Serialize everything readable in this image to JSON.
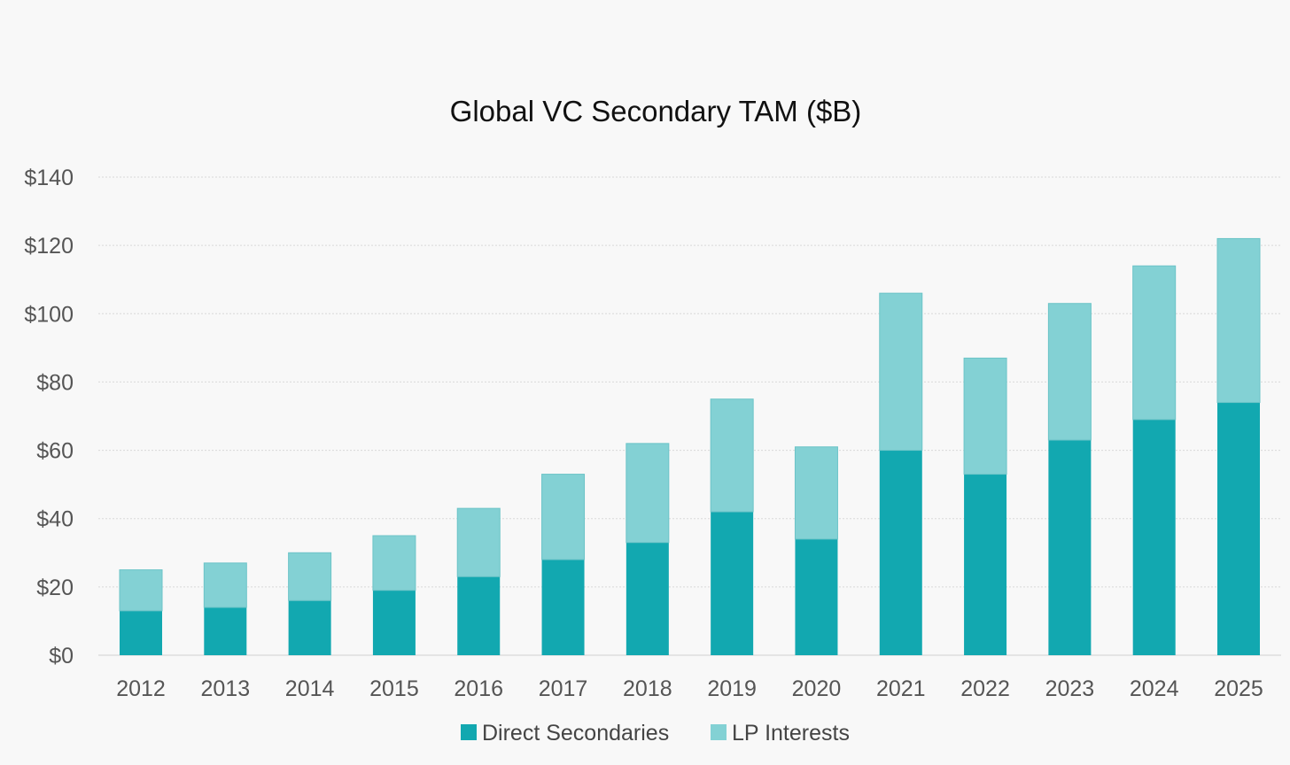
{
  "chart_data": {
    "type": "bar",
    "stacked": true,
    "title": "Global VC Secondary TAM ($B)",
    "xlabel": "",
    "ylabel": "",
    "ylim": [
      0,
      140
    ],
    "yticks": [
      0,
      20,
      40,
      60,
      80,
      100,
      120,
      140
    ],
    "ytick_labels": [
      "$0",
      "$20",
      "$40",
      "$60",
      "$80",
      "$100",
      "$120",
      "$140"
    ],
    "categories": [
      "2012",
      "2013",
      "2014",
      "2015",
      "2016",
      "2017",
      "2018",
      "2019",
      "2020",
      "2021",
      "2022",
      "2023",
      "2024",
      "2025"
    ],
    "series": [
      {
        "name": "Direct Secondaries",
        "color": "#12a8b0",
        "values": [
          13,
          14,
          16,
          19,
          23,
          28,
          33,
          42,
          34,
          60,
          53,
          63,
          69,
          74
        ]
      },
      {
        "name": "LP Interests",
        "color": "#83d1d4",
        "values": [
          12,
          13,
          14,
          16,
          20,
          25,
          29,
          33,
          27,
          46,
          34,
          40,
          45,
          48
        ]
      }
    ],
    "grid": true,
    "legend_position": "bottom-center"
  }
}
